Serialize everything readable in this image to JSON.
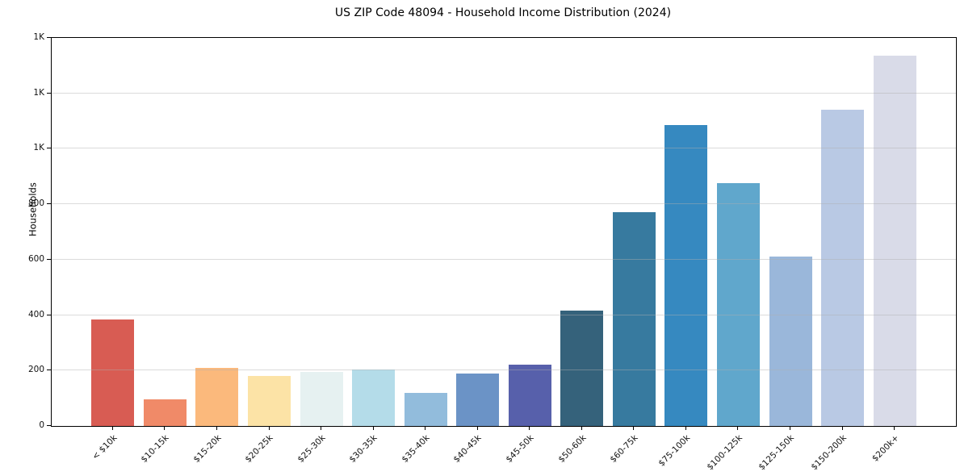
{
  "chart_data": {
    "type": "bar",
    "title": "US ZIP Code 48094 - Household Income Distribution (2024)",
    "xlabel": "",
    "ylabel": "Households",
    "categories": [
      "< $10k",
      "$10-15k",
      "$15-20k",
      "$20-25k",
      "$25-30k",
      "$30-35k",
      "$35-40k",
      "$40-45k",
      "$45-50k",
      "$50-60k",
      "$60-75k",
      "$75-100k",
      "$100-125k",
      "$125-150k",
      "$150-200k",
      "$200k+"
    ],
    "values": [
      385,
      95,
      210,
      180,
      195,
      205,
      120,
      190,
      220,
      415,
      770,
      1085,
      875,
      610,
      1140,
      1335
    ],
    "bar_colors": [
      "#d85c53",
      "#f08a68",
      "#fbb97c",
      "#fce3a6",
      "#e6f1f1",
      "#b4dce9",
      "#92bcdc",
      "#6b93c6",
      "#5760ab",
      "#35627b",
      "#377a9f",
      "#3689c0",
      "#60a7cc",
      "#9ab7da",
      "#b9c9e4",
      "#d9dbe8"
    ],
    "ylim": [
      0,
      1400
    ],
    "yticks": [
      0,
      200,
      400,
      600,
      800,
      1000,
      1200,
      1400
    ],
    "ytick_labels": [
      "0",
      "200",
      "400",
      "600",
      "800",
      "1K",
      "1K",
      "1K"
    ],
    "grid": "horizontal",
    "legend": "none"
  }
}
